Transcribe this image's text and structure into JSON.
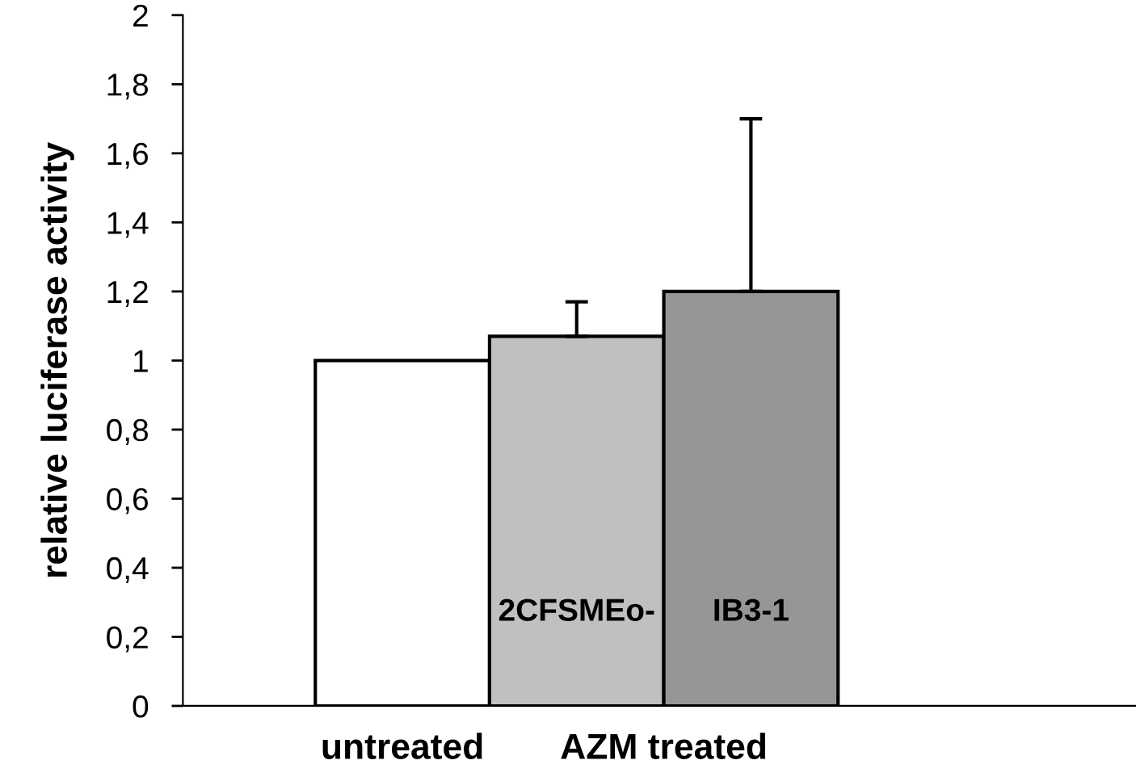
{
  "chart_data": {
    "type": "bar",
    "ylabel": "relative luciferase activity",
    "categories": [
      "untreated",
      "AZM treated"
    ],
    "series": [
      {
        "color": "#ffffff",
        "values": [
          1.0,
          null
        ]
      },
      {
        "name": "2CFSMEo-",
        "color": "#c0c0c0",
        "values": [
          null,
          1.07
        ],
        "errors": [
          null,
          0.1
        ]
      },
      {
        "name": "IB3-1",
        "color": "#969696",
        "values": [
          null,
          1.2
        ],
        "errors": [
          null,
          0.5
        ]
      }
    ],
    "ylim": [
      0,
      2
    ],
    "yticks": [
      0,
      {
        "value": 0.2,
        "label": "0,2"
      },
      {
        "value": 0.4,
        "label": "0,4"
      },
      {
        "value": 0.6,
        "label": "0,6"
      },
      {
        "value": 0.8,
        "label": "0,8"
      },
      1,
      {
        "value": 1.2,
        "label": "1,2"
      },
      {
        "value": 1.4,
        "label": "1,4"
      },
      {
        "value": 1.6,
        "label": "1,6"
      },
      {
        "value": 1.8,
        "label": "1,8"
      },
      2
    ],
    "grid": false,
    "legend": false
  }
}
